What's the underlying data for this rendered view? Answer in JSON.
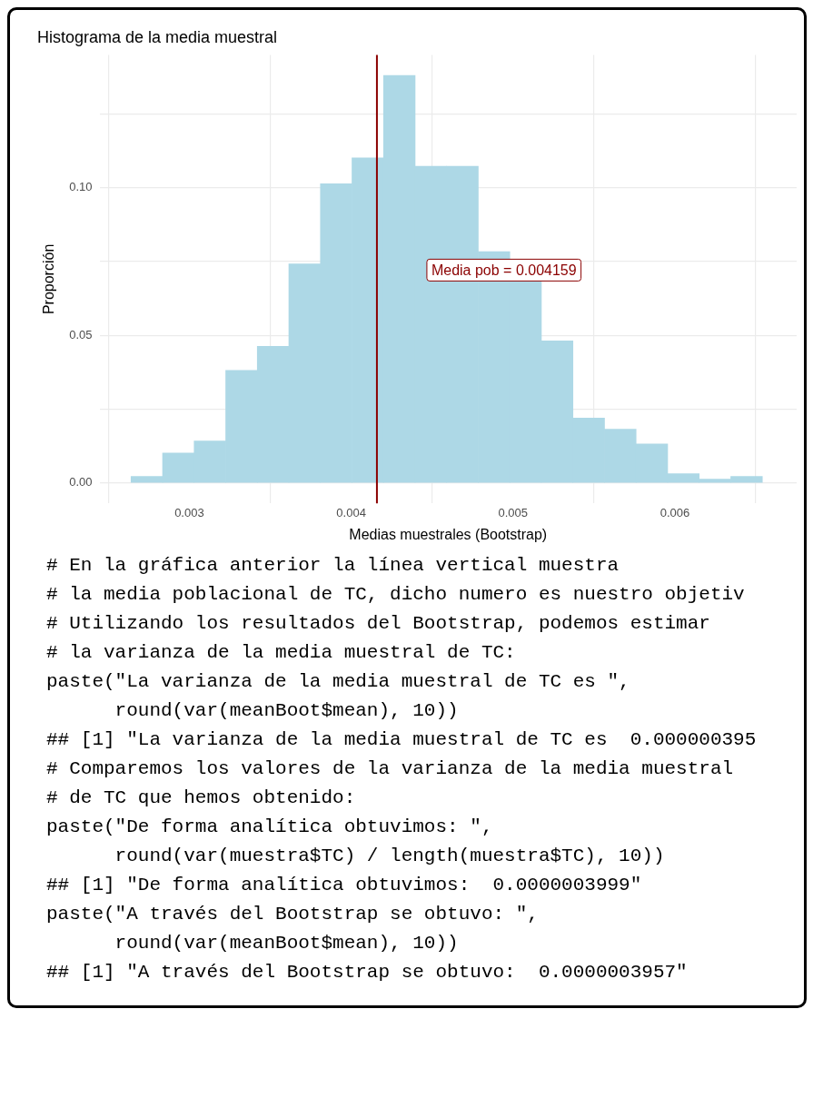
{
  "chart_data": {
    "type": "histogram",
    "title": "Histograma de la media muestral",
    "xlabel": "Medias muestrales (Bootstrap)",
    "ylabel": "Proporción",
    "bins": [
      0.00264,
      0.002835,
      0.00303,
      0.003225,
      0.00342,
      0.003615,
      0.00381,
      0.004005,
      0.0042,
      0.004395,
      0.00459,
      0.004785,
      0.00498,
      0.005175,
      0.00537,
      0.005565,
      0.00576,
      0.005955,
      0.00615,
      0.006345,
      0.00654
    ],
    "values": [
      0.0022,
      0.0101,
      0.0142,
      0.0381,
      0.0463,
      0.0742,
      0.1013,
      0.1101,
      0.138,
      0.1072,
      0.1072,
      0.0783,
      0.0682,
      0.0481,
      0.022,
      0.0182,
      0.0132,
      0.0031,
      0.0013,
      0.0022
    ],
    "color": "#add8e6",
    "xlim": [
      0.002445,
      0.006752
    ],
    "ylim": [
      -0.0069,
      0.1449
    ],
    "xticks": [
      0.003,
      0.004,
      0.005,
      0.006
    ],
    "yticks": [
      {
        "value": 0,
        "label": "0.00"
      },
      {
        "value": 0.025,
        "label": null
      },
      0.05,
      {
        "value": 0.075,
        "label": null
      },
      {
        "value": 0.1,
        "label": "0.10"
      },
      {
        "value": 0.125,
        "label": null
      }
    ],
    "grid": true,
    "legend": false,
    "ref_lines": [
      {
        "axis": "x",
        "value": 0.004159,
        "color": "#8b0000",
        "label": "Media pob = 0.004159"
      }
    ],
    "annotations": [
      "# En la gráfica anterior la línea vertical muestra",
      "# la media poblacional de TC, dicho numero es nuestro objetiv",
      "# Utilizando los resultados del Bootstrap, podemos estimar",
      "# la varianza de la media muestral de TC:",
      "paste(\"La varianza de la media muestral de TC es \",",
      "      round(var(meanBoot$mean), 10))",
      "## [1] \"La varianza de la media muestral de TC es  0.000000395",
      "# Comparemos los valores de la varianza de la media muestral",
      "# de TC que hemos obtenido:",
      "paste(\"De forma analítica obtuvimos: \",",
      "      round(var(muestra$TC) / length(muestra$TC), 10))",
      "## [1] \"De forma analítica obtuvimos:  0.0000003999\"",
      "paste(\"A través del Bootstrap se obtuvo: \",",
      "      round(var(meanBoot$mean), 10))",
      "## [1] \"A través del Bootstrap se obtuvo:  0.0000003957\""
    ]
  }
}
